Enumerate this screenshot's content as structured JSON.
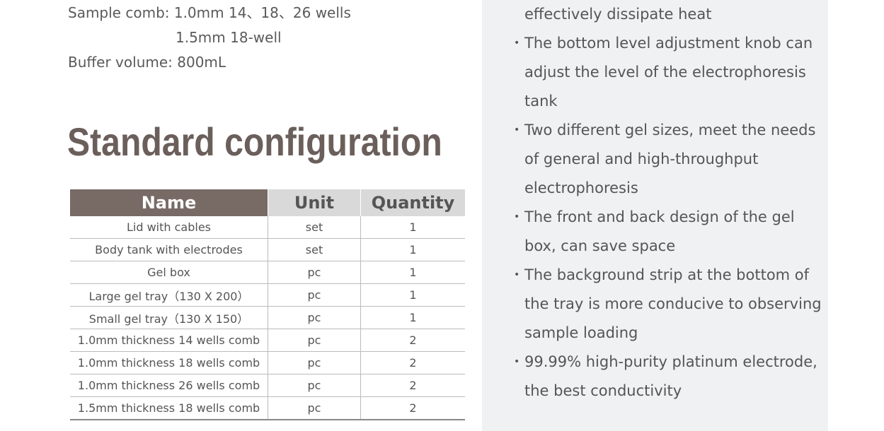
{
  "specs": {
    "comb_label": "Sample comb: 1.0mm 14、18、26 wells",
    "comb_line2": "1.5mm 18-well",
    "buffer": "Buffer volume: 800mL"
  },
  "section_title": "Standard configuration",
  "table": {
    "headers": [
      "Name",
      "Unit",
      "Quantity"
    ],
    "rows": [
      [
        "Lid with cables",
        "set",
        "1"
      ],
      [
        "Body tank with electrodes",
        "set",
        "1"
      ],
      [
        "Gel box",
        "pc",
        "1"
      ],
      [
        "Large gel tray（130 X 200）",
        "pc",
        "1"
      ],
      [
        "Small gel tray（130 X 150）",
        "pc",
        "1"
      ],
      [
        "1.0mm thickness 14 wells comb",
        "pc",
        "2"
      ],
      [
        "1.0mm thickness 18 wells comb",
        "pc",
        "2"
      ],
      [
        "1.0mm thickness 26 wells comb",
        "pc",
        "2"
      ],
      [
        "1.5mm thickness 18 wells comb",
        "pc",
        "2"
      ]
    ]
  },
  "features": {
    "lines": [
      "effectively dissipate heat",
      "The bottom level adjustment knob can",
      "adjust the level of the electrophoresis",
      "tank",
      "Two different gel sizes, meet the needs",
      "of general and high-throughput",
      "electrophoresis",
      "The front and back design of the gel",
      "box, can save space",
      "The background strip at the bottom of",
      "the tray is more conducive to observing",
      "sample loading",
      "99.99% high-purity platinum electrode,",
      "the best conductivity"
    ],
    "bullet": "•"
  },
  "colors": {
    "header_brown": "#786a65",
    "panel_bg": "#f0f1f3"
  }
}
